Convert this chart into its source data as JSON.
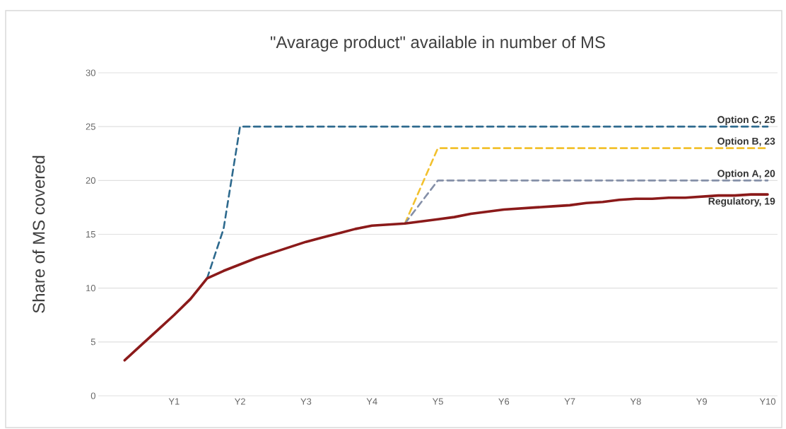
{
  "chart_data": {
    "type": "line",
    "title": "\"Avarage product\" available in number of MS",
    "ylabel": "Share of MS covered",
    "ylim": [
      0,
      30
    ],
    "yticks": [
      0,
      5,
      10,
      15,
      20,
      25,
      30
    ],
    "categories": [
      null,
      null,
      null,
      null,
      "Y1",
      null,
      null,
      null,
      "Y2",
      null,
      null,
      null,
      "Y3",
      null,
      null,
      null,
      "Y4",
      null,
      null,
      null,
      "Y5",
      null,
      null,
      null,
      "Y6",
      null,
      null,
      null,
      "Y7",
      null,
      null,
      null,
      "Y8",
      null,
      null,
      null,
      "Y9",
      null,
      null,
      null,
      "Y10"
    ],
    "grid": "y",
    "legend": false,
    "marker": "none",
    "series": [
      {
        "name": "Option C, 25",
        "color": "#2e6a8e",
        "line_style": "dashed",
        "values": [
          null,
          null,
          null,
          null,
          null,
          null,
          10.9,
          15.5,
          25,
          25,
          25,
          25,
          25,
          25,
          25,
          25,
          25,
          25,
          25,
          25,
          25,
          25,
          25,
          25,
          25,
          25,
          25,
          25,
          25,
          25,
          25,
          25,
          25,
          25,
          25,
          25,
          25,
          25,
          25,
          25,
          25
        ]
      },
      {
        "name": "Option B, 23",
        "color": "#f2c12e",
        "line_style": "dashed",
        "values": [
          null,
          null,
          null,
          null,
          null,
          null,
          null,
          null,
          null,
          null,
          null,
          null,
          null,
          null,
          null,
          null,
          null,
          null,
          16,
          19.5,
          23,
          23,
          23,
          23,
          23,
          23,
          23,
          23,
          23,
          23,
          23,
          23,
          23,
          23,
          23,
          23,
          23,
          23,
          23,
          23,
          23
        ]
      },
      {
        "name": "Option A, 20",
        "color": "#8590a8",
        "line_style": "dashed",
        "values": [
          null,
          null,
          null,
          null,
          null,
          null,
          null,
          null,
          null,
          null,
          null,
          null,
          null,
          null,
          null,
          null,
          null,
          null,
          16,
          18,
          20,
          20,
          20,
          20,
          20,
          20,
          20,
          20,
          20,
          20,
          20,
          20,
          20,
          20,
          20,
          20,
          20,
          20,
          20,
          20,
          20
        ]
      },
      {
        "name": "Regulatory, 19",
        "color": "#8b1a1a",
        "line_style": "solid",
        "values": [
          null,
          3.3,
          4.7,
          6.1,
          7.5,
          9,
          10.9,
          11.6,
          12.2,
          12.8,
          13.3,
          13.8,
          14.3,
          14.7,
          15.1,
          15.5,
          15.8,
          15.9,
          16,
          16.2,
          16.4,
          16.6,
          16.9,
          17.1,
          17.3,
          17.4,
          17.5,
          17.6,
          17.7,
          17.9,
          18,
          18.2,
          18.3,
          18.3,
          18.4,
          18.4,
          18.5,
          18.6,
          18.6,
          18.7,
          18.7
        ]
      }
    ]
  }
}
